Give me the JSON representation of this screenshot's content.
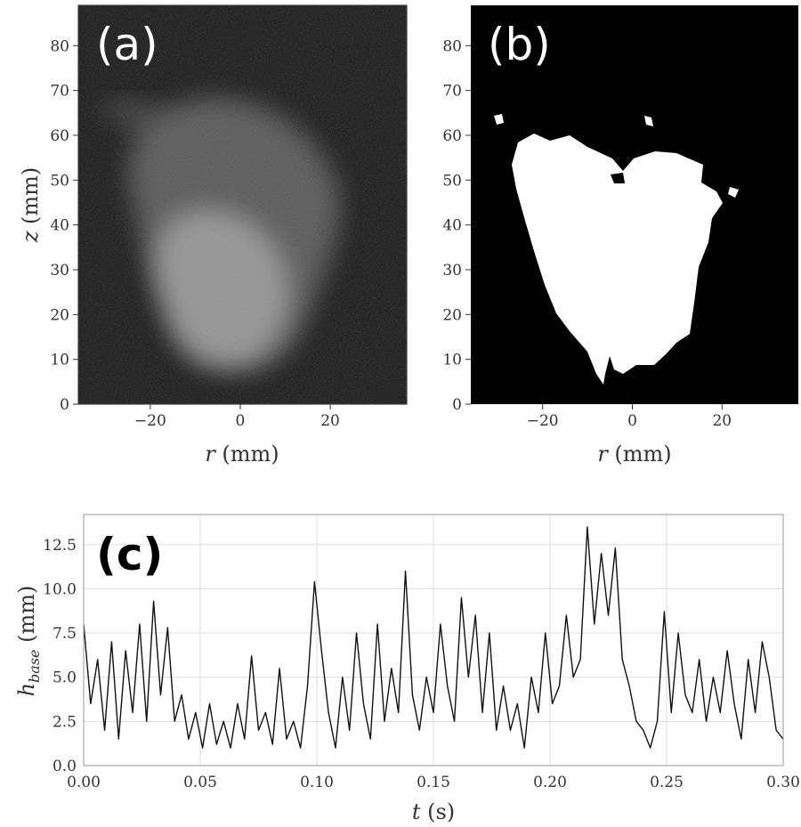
{
  "chart_data": [
    {
      "type": "image",
      "panel_label": "(a)",
      "xlabel_var": "r",
      "xlabel_unit": " (mm)",
      "ylabel_var": "z",
      "ylabel_unit": " (mm)",
      "xlim": [
        -36,
        37
      ],
      "ylim": [
        0,
        89
      ],
      "xticks": [
        -20,
        0,
        20
      ],
      "xtick_labels": [
        "−20",
        "0",
        "20"
      ],
      "yticks": [
        0,
        10,
        20,
        30,
        40,
        50,
        60,
        70,
        80
      ],
      "ytick_labels": [
        "0",
        "10",
        "20",
        "30",
        "40",
        "50",
        "60",
        "70",
        "80"
      ],
      "background": "#101010",
      "content": "grayscale flame"
    },
    {
      "type": "image",
      "panel_label": "(b)",
      "xlabel_var": "r",
      "xlabel_unit": " (mm)",
      "xlim": [
        -36,
        37
      ],
      "ylim": [
        0,
        89
      ],
      "xticks": [
        -20,
        0,
        20
      ],
      "xtick_labels": [
        "−20",
        "0",
        "20"
      ],
      "yticks": [
        0,
        10,
        20,
        30,
        40,
        50,
        60,
        70,
        80
      ],
      "ytick_labels": [
        "0",
        "10",
        "20",
        "30",
        "40",
        "50",
        "60",
        "70",
        "80"
      ],
      "background": "#000000",
      "content": "binary mask"
    },
    {
      "type": "line",
      "panel_label": "(c)",
      "xlabel_var": "t",
      "xlabel_unit": " (s)",
      "ylabel_var": "h",
      "ylabel_sub": "base",
      "ylabel_unit": " (mm)",
      "xlim": [
        0,
        0.3
      ],
      "ylim": [
        0,
        14.2
      ],
      "xticks": [
        0,
        0.05,
        0.1,
        0.15,
        0.2,
        0.25,
        0.3
      ],
      "xtick_labels": [
        "0.00",
        "0.05",
        "0.10",
        "0.15",
        "0.20",
        "0.25",
        "0.30"
      ],
      "yticks": [
        0,
        2.5,
        5,
        7.5,
        10,
        12.5
      ],
      "ytick_labels": [
        "0.0",
        "2.5",
        "5.0",
        "7.5",
        "10.0",
        "12.5"
      ],
      "grid": true,
      "line_color": "#111111",
      "x": [
        0.0,
        0.003,
        0.006,
        0.009,
        0.012,
        0.015,
        0.018,
        0.021,
        0.024,
        0.027,
        0.03,
        0.033,
        0.036,
        0.039,
        0.042,
        0.045,
        0.048,
        0.051,
        0.054,
        0.057,
        0.06,
        0.063,
        0.066,
        0.069,
        0.072,
        0.075,
        0.078,
        0.081,
        0.084,
        0.087,
        0.09,
        0.093,
        0.096,
        0.099,
        0.102,
        0.105,
        0.108,
        0.111,
        0.114,
        0.117,
        0.12,
        0.123,
        0.126,
        0.129,
        0.132,
        0.135,
        0.138,
        0.141,
        0.144,
        0.147,
        0.15,
        0.153,
        0.156,
        0.159,
        0.162,
        0.165,
        0.168,
        0.171,
        0.174,
        0.177,
        0.18,
        0.183,
        0.186,
        0.189,
        0.192,
        0.195,
        0.198,
        0.201,
        0.204,
        0.207,
        0.21,
        0.213,
        0.216,
        0.219,
        0.222,
        0.225,
        0.228,
        0.231,
        0.234,
        0.237,
        0.24,
        0.243,
        0.246,
        0.249,
        0.252,
        0.255,
        0.258,
        0.261,
        0.264,
        0.267,
        0.27,
        0.273,
        0.276,
        0.279,
        0.282,
        0.285,
        0.288,
        0.291,
        0.294,
        0.297,
        0.3
      ],
      "y": [
        8.0,
        3.5,
        6.0,
        2.0,
        7.0,
        1.5,
        6.5,
        3.0,
        8.0,
        2.5,
        9.3,
        4.0,
        7.8,
        2.5,
        4.0,
        1.5,
        3.0,
        1.0,
        3.5,
        1.2,
        2.5,
        1.0,
        3.5,
        1.5,
        6.2,
        2.0,
        3.0,
        1.2,
        5.5,
        1.5,
        2.5,
        1.0,
        4.5,
        10.4,
        6.5,
        3.0,
        1.0,
        5.0,
        2.0,
        7.5,
        3.5,
        1.5,
        8.0,
        2.5,
        5.5,
        3.0,
        11.0,
        4.0,
        2.0,
        5.0,
        3.0,
        8.0,
        4.5,
        2.5,
        9.5,
        5.0,
        8.5,
        3.0,
        7.5,
        2.0,
        4.5,
        2.0,
        3.5,
        1.0,
        5.0,
        3.0,
        7.5,
        3.5,
        4.5,
        8.5,
        5.0,
        6.0,
        13.5,
        8.0,
        12.0,
        8.5,
        12.3,
        6.0,
        4.5,
        2.5,
        2.0,
        1.0,
        2.5,
        8.7,
        3.0,
        7.5,
        4.0,
        3.0,
        6.0,
        2.5,
        5.0,
        3.0,
        6.5,
        3.5,
        1.5,
        6.0,
        3.0,
        7.0,
        5.0,
        2.0,
        1.5
      ]
    }
  ]
}
